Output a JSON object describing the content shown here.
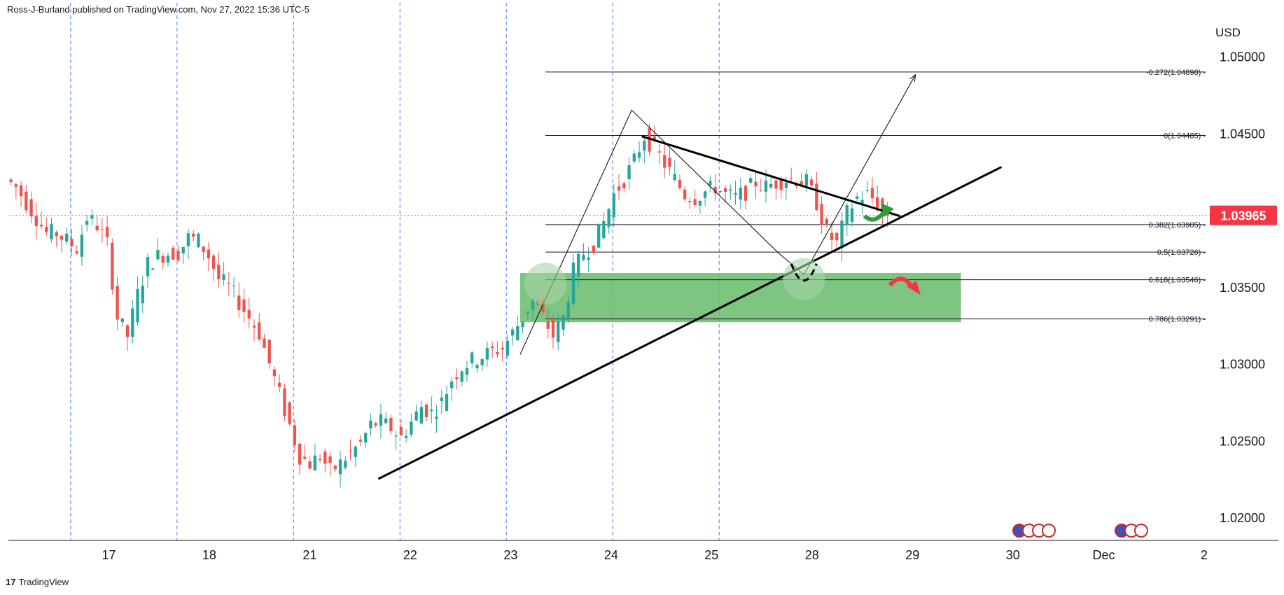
{
  "header": {
    "publisher": "Ross-J-Burland published on TradingView.com, Nov 27, 2022 15:36 UTC-5"
  },
  "footer": {
    "brand": "TradingView",
    "logo_glyph": "17"
  },
  "colors": {
    "up": "#26a69a",
    "down": "#ef5350",
    "zone": "#66bb6a",
    "price_label_bg": "#f23645",
    "grid_dash": "#2962ff",
    "line": "#131722"
  },
  "chart_data": {
    "type": "candlestick",
    "title": "",
    "currency_label": "USD",
    "y_axis": {
      "ylim": [
        1.0185,
        1.0523
      ],
      "ticks": [
        "1.05000",
        "1.04500",
        "1.03500",
        "1.03000",
        "1.02500",
        "1.02000"
      ],
      "tick_values": [
        1.05,
        1.045,
        1.035,
        1.03,
        1.025,
        1.02
      ]
    },
    "x_axis": {
      "labels": [
        "17",
        "18",
        "21",
        "22",
        "23",
        "24",
        "25",
        "28",
        "29",
        "30",
        "Dec",
        "2"
      ],
      "session_breaks": 12
    },
    "last_price": {
      "label": "1.03965",
      "value": 1.03965
    },
    "fibonacci": [
      {
        "label": "-0.272(1.04898)",
        "value": 1.04898
      },
      {
        "label": "0(1.04485)",
        "value": 1.04485
      },
      {
        "label": "0.382(1.03905)",
        "value": 1.03905
      },
      {
        "label": "0.5(1.03726)",
        "value": 1.03726
      },
      {
        "label": "0.618(1.03546)",
        "value": 1.03546
      },
      {
        "label": "0.786(1.03291)",
        "value": 1.03291
      }
    ],
    "support_zone": {
      "top": 1.0359,
      "bottom": 1.0327
    },
    "candle_path": [
      [
        0,
        1.042
      ],
      [
        2,
        1.0415
      ],
      [
        4,
        1.0405
      ],
      [
        6,
        1.0395
      ],
      [
        8,
        1.0385
      ],
      [
        10,
        1.0385
      ],
      [
        12,
        1.038
      ],
      [
        14,
        1.0375
      ],
      [
        16,
        1.0395
      ],
      [
        18,
        1.039
      ],
      [
        20,
        1.0378
      ],
      [
        22,
        1.033
      ],
      [
        24,
        1.0318
      ],
      [
        26,
        1.0345
      ],
      [
        28,
        1.0365
      ],
      [
        30,
        1.037
      ],
      [
        32,
        1.0372
      ],
      [
        34,
        1.0372
      ],
      [
        36,
        1.0382
      ],
      [
        38,
        1.038
      ],
      [
        40,
        1.037
      ],
      [
        42,
        1.0355
      ],
      [
        44,
        1.035
      ],
      [
        46,
        1.034
      ],
      [
        48,
        1.033
      ],
      [
        50,
        1.032
      ],
      [
        52,
        1.03
      ],
      [
        54,
        1.028
      ],
      [
        56,
        1.026
      ],
      [
        58,
        1.024
      ],
      [
        60,
        1.0235
      ],
      [
        62,
        1.024
      ],
      [
        64,
        1.023
      ],
      [
        66,
        1.0235
      ],
      [
        68,
        1.0242
      ],
      [
        70,
        1.0248
      ],
      [
        72,
        1.026
      ],
      [
        74,
        1.0262
      ],
      [
        76,
        1.0258
      ],
      [
        78,
        1.0252
      ],
      [
        80,
        1.0262
      ],
      [
        82,
        1.0272
      ],
      [
        84,
        1.0268
      ],
      [
        86,
        1.0275
      ],
      [
        88,
        1.029
      ],
      [
        90,
        1.0298
      ],
      [
        92,
        1.0302
      ],
      [
        94,
        1.0305
      ],
      [
        96,
        1.0308
      ],
      [
        98,
        1.031
      ],
      [
        100,
        1.032
      ],
      [
        102,
        1.033
      ],
      [
        104,
        1.0342
      ],
      [
        106,
        1.033
      ],
      [
        108,
        1.0318
      ],
      [
        110,
        1.033
      ],
      [
        112,
        1.036
      ],
      [
        114,
        1.0372
      ],
      [
        116,
        1.0378
      ],
      [
        118,
        1.0392
      ],
      [
        120,
        1.041
      ],
      [
        122,
        1.042
      ],
      [
        124,
        1.0432
      ],
      [
        126,
        1.0448
      ],
      [
        128,
        1.044
      ],
      [
        130,
        1.043
      ],
      [
        132,
        1.042
      ],
      [
        134,
        1.041
      ],
      [
        136,
        1.0408
      ],
      [
        138,
        1.0412
      ],
      [
        140,
        1.0415
      ],
      [
        142,
        1.041
      ],
      [
        144,
        1.0408
      ],
      [
        146,
        1.0412
      ],
      [
        148,
        1.0418
      ],
      [
        150,
        1.0415
      ],
      [
        152,
        1.0418
      ],
      [
        154,
        1.042
      ],
      [
        156,
        1.042
      ],
      [
        158,
        1.0418
      ],
      [
        160,
        1.0405
      ],
      [
        162,
        1.0385
      ],
      [
        164,
        1.0378
      ],
      [
        166,
        1.0398
      ],
      [
        168,
        1.0408
      ],
      [
        170,
        1.041
      ],
      [
        172,
        1.0405
      ],
      [
        173,
        1.03965
      ]
    ],
    "annotations": [
      {
        "type": "trendline",
        "name": "rising-support",
        "points": [
          [
            73,
            1.0225
          ],
          [
            196,
            1.0428
          ]
        ]
      },
      {
        "type": "trendline",
        "name": "falling-resistance",
        "points": [
          [
            125,
            1.0448
          ],
          [
            176,
            1.0396
          ]
        ]
      },
      {
        "type": "zigzag",
        "name": "pattern",
        "points": [
          [
            101,
            1.0306
          ],
          [
            123,
            1.0465
          ],
          [
            152,
            1.0372
          ],
          [
            157,
            1.0358
          ],
          [
            179,
            1.0488
          ]
        ]
      },
      {
        "type": "circle",
        "name": "zone-circle-left",
        "at": [
          106,
          1.0352
        ]
      },
      {
        "type": "circle",
        "name": "zone-circle-right",
        "at": [
          157,
          1.0355
        ]
      },
      {
        "type": "arrow",
        "name": "bullish-arrow",
        "color": "green",
        "at": [
          172,
          1.0399
        ]
      },
      {
        "type": "arrow",
        "name": "bearish-arrow",
        "color": "red",
        "at": [
          177,
          1.0352
        ]
      }
    ]
  }
}
